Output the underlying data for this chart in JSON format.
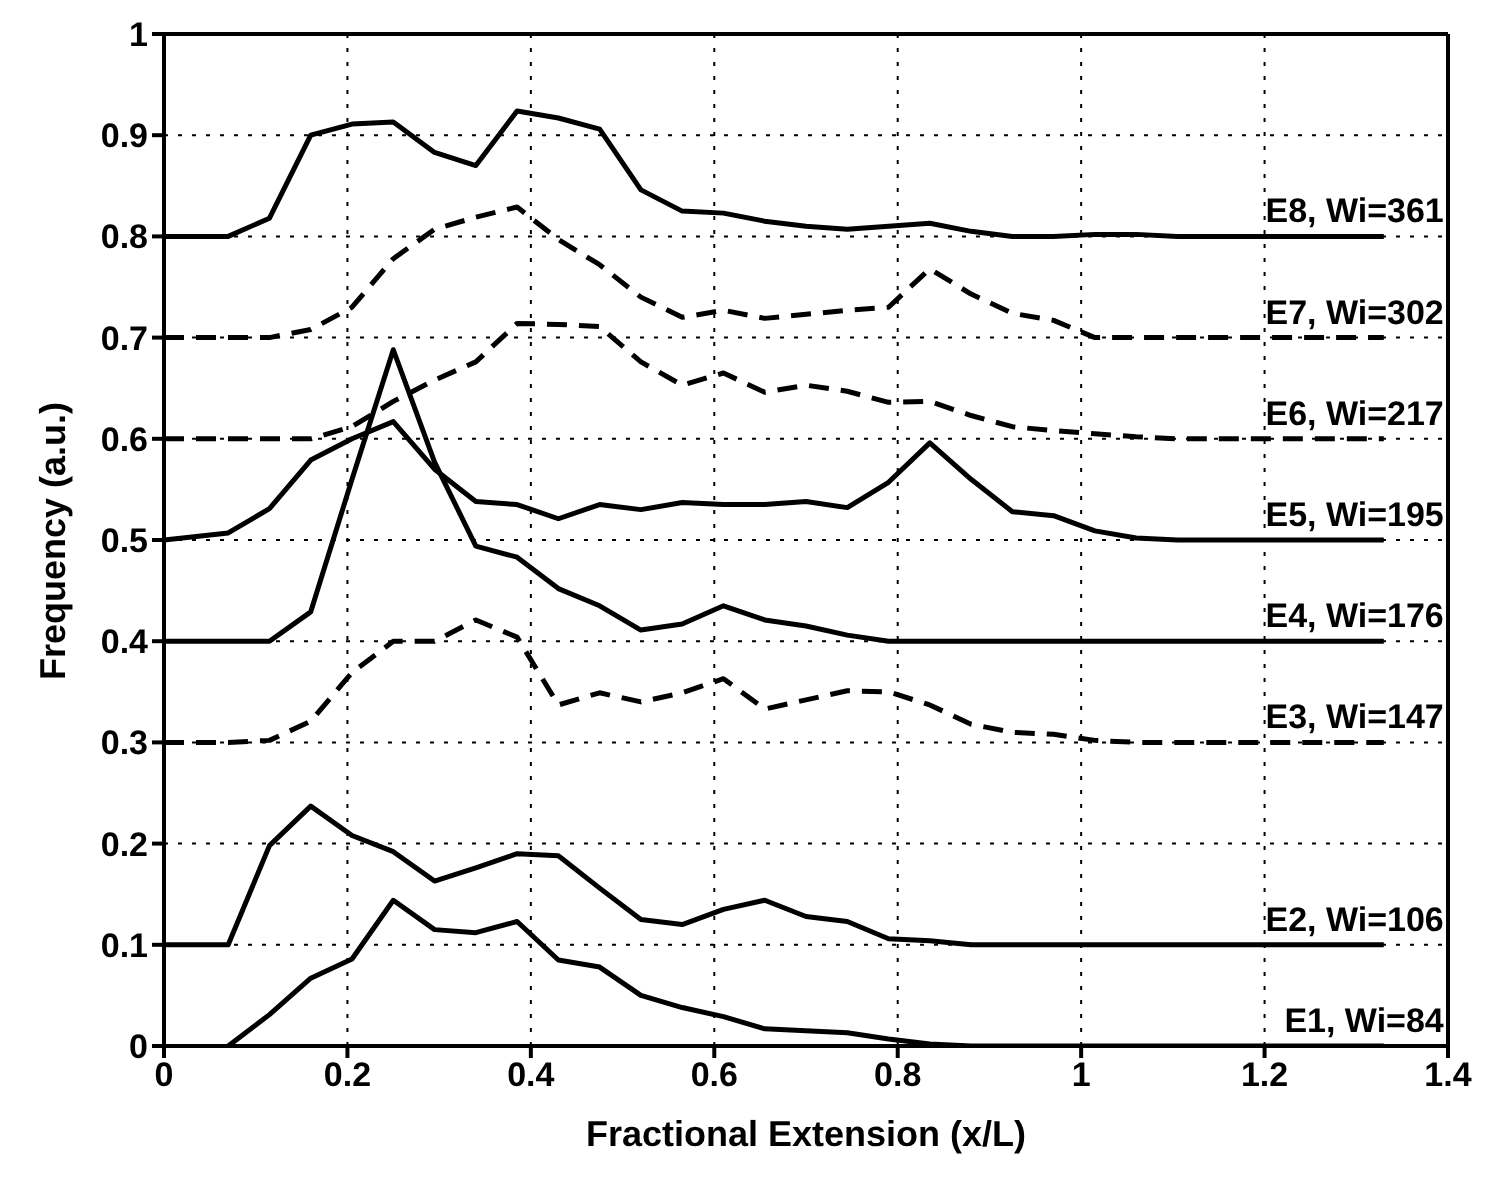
{
  "chart_data": {
    "type": "line",
    "xlabel": "Fractional Extension (x/L)",
    "ylabel": "Frequency (a.u.)",
    "x": [
      0,
      0.07,
      0.115,
      0.16,
      0.205,
      0.25,
      0.295,
      0.34,
      0.385,
      0.43,
      0.475,
      0.52,
      0.565,
      0.61,
      0.655,
      0.7,
      0.745,
      0.79,
      0.835,
      0.88,
      0.925,
      0.97,
      1.015,
      1.06,
      1.105,
      1.15,
      1.195,
      1.24,
      1.285,
      1.33
    ],
    "series": [
      {
        "name": "E8, Wi=361",
        "color": "#000000",
        "line_style": "solid",
        "values": [
          0.8,
          0.8,
          0.818,
          0.9,
          0.911,
          0.913,
          0.883,
          0.87,
          0.924,
          0.917,
          0.906,
          0.846,
          0.825,
          0.823,
          0.815,
          0.81,
          0.807,
          0.81,
          0.813,
          0.805,
          0.8,
          0.8,
          0.802,
          0.802,
          0.8,
          0.8,
          0.8,
          0.8,
          0.8,
          0.8
        ]
      },
      {
        "name": "E7, Wi=302",
        "color": "#000000",
        "line_style": "dashed",
        "values": [
          0.7,
          0.7,
          0.7,
          0.708,
          0.73,
          0.778,
          0.807,
          0.819,
          0.829,
          0.797,
          0.772,
          0.74,
          0.72,
          0.727,
          0.719,
          0.723,
          0.727,
          0.73,
          0.768,
          0.743,
          0.724,
          0.717,
          0.7,
          0.7,
          0.7,
          0.7,
          0.7,
          0.7,
          0.7,
          0.7
        ]
      },
      {
        "name": "E6, Wi=217",
        "color": "#000000",
        "line_style": "dashed",
        "values": [
          0.6,
          0.6,
          0.6,
          0.6,
          0.612,
          0.637,
          0.658,
          0.676,
          0.714,
          0.713,
          0.711,
          0.676,
          0.653,
          0.665,
          0.646,
          0.653,
          0.647,
          0.636,
          0.637,
          0.623,
          0.612,
          0.608,
          0.605,
          0.602,
          0.6,
          0.6,
          0.6,
          0.6,
          0.6,
          0.6
        ]
      },
      {
        "name": "E5, Wi=195",
        "color": "#000000",
        "line_style": "solid",
        "values": [
          0.5,
          0.507,
          0.531,
          0.579,
          0.6,
          0.617,
          0.57,
          0.538,
          0.535,
          0.521,
          0.535,
          0.53,
          0.537,
          0.535,
          0.535,
          0.538,
          0.532,
          0.557,
          0.596,
          0.56,
          0.528,
          0.524,
          0.509,
          0.502,
          0.5,
          0.5,
          0.5,
          0.5,
          0.5,
          0.5
        ]
      },
      {
        "name": "E4, Wi=176",
        "color": "#000000",
        "line_style": "solid",
        "values": [
          0.4,
          0.4,
          0.4,
          0.429,
          0.56,
          0.688,
          0.577,
          0.494,
          0.483,
          0.452,
          0.435,
          0.411,
          0.417,
          0.435,
          0.421,
          0.415,
          0.406,
          0.4,
          0.4,
          0.4,
          0.4,
          0.4,
          0.4,
          0.4,
          0.4,
          0.4,
          0.4,
          0.4,
          0.4,
          0.4
        ]
      },
      {
        "name": "E3, Wi=147",
        "color": "#000000",
        "line_style": "dashed",
        "values": [
          0.3,
          0.3,
          0.302,
          0.321,
          0.369,
          0.4,
          0.4,
          0.421,
          0.404,
          0.337,
          0.349,
          0.34,
          0.349,
          0.363,
          0.333,
          0.342,
          0.351,
          0.35,
          0.337,
          0.318,
          0.31,
          0.308,
          0.302,
          0.3,
          0.3,
          0.3,
          0.3,
          0.3,
          0.3,
          0.3
        ]
      },
      {
        "name": "E2, Wi=106",
        "color": "#000000",
        "line_style": "solid",
        "values": [
          0.1,
          0.1,
          0.198,
          0.237,
          0.208,
          0.192,
          0.163,
          0.176,
          0.19,
          0.188,
          0.156,
          0.125,
          0.12,
          0.135,
          0.144,
          0.128,
          0.123,
          0.106,
          0.104,
          0.1,
          0.1,
          0.1,
          0.1,
          0.1,
          0.1,
          0.1,
          0.1,
          0.1,
          0.1,
          0.1
        ]
      },
      {
        "name": "E1, Wi=84",
        "color": "#000000",
        "line_style": "solid",
        "values": [
          null,
          0,
          0.031,
          0.067,
          0.086,
          0.144,
          0.115,
          0.112,
          0.123,
          0.085,
          0.078,
          0.05,
          0.038,
          0.029,
          0.017,
          0.015,
          0.013,
          0.007,
          0.002,
          0,
          0,
          0,
          0,
          0,
          0,
          0,
          0,
          0,
          0,
          0
        ]
      }
    ],
    "xlim": [
      0,
      1.4
    ],
    "xticks": [
      0,
      0.2,
      0.4,
      0.6,
      0.8,
      1,
      1.2,
      1.4
    ],
    "ylim": [
      0,
      1
    ],
    "yticks": [
      0,
      0.1,
      0.2,
      0.3,
      0.4,
      0.5,
      0.6,
      0.7,
      0.8,
      0.9,
      1
    ],
    "grid": true,
    "marker": "none"
  }
}
